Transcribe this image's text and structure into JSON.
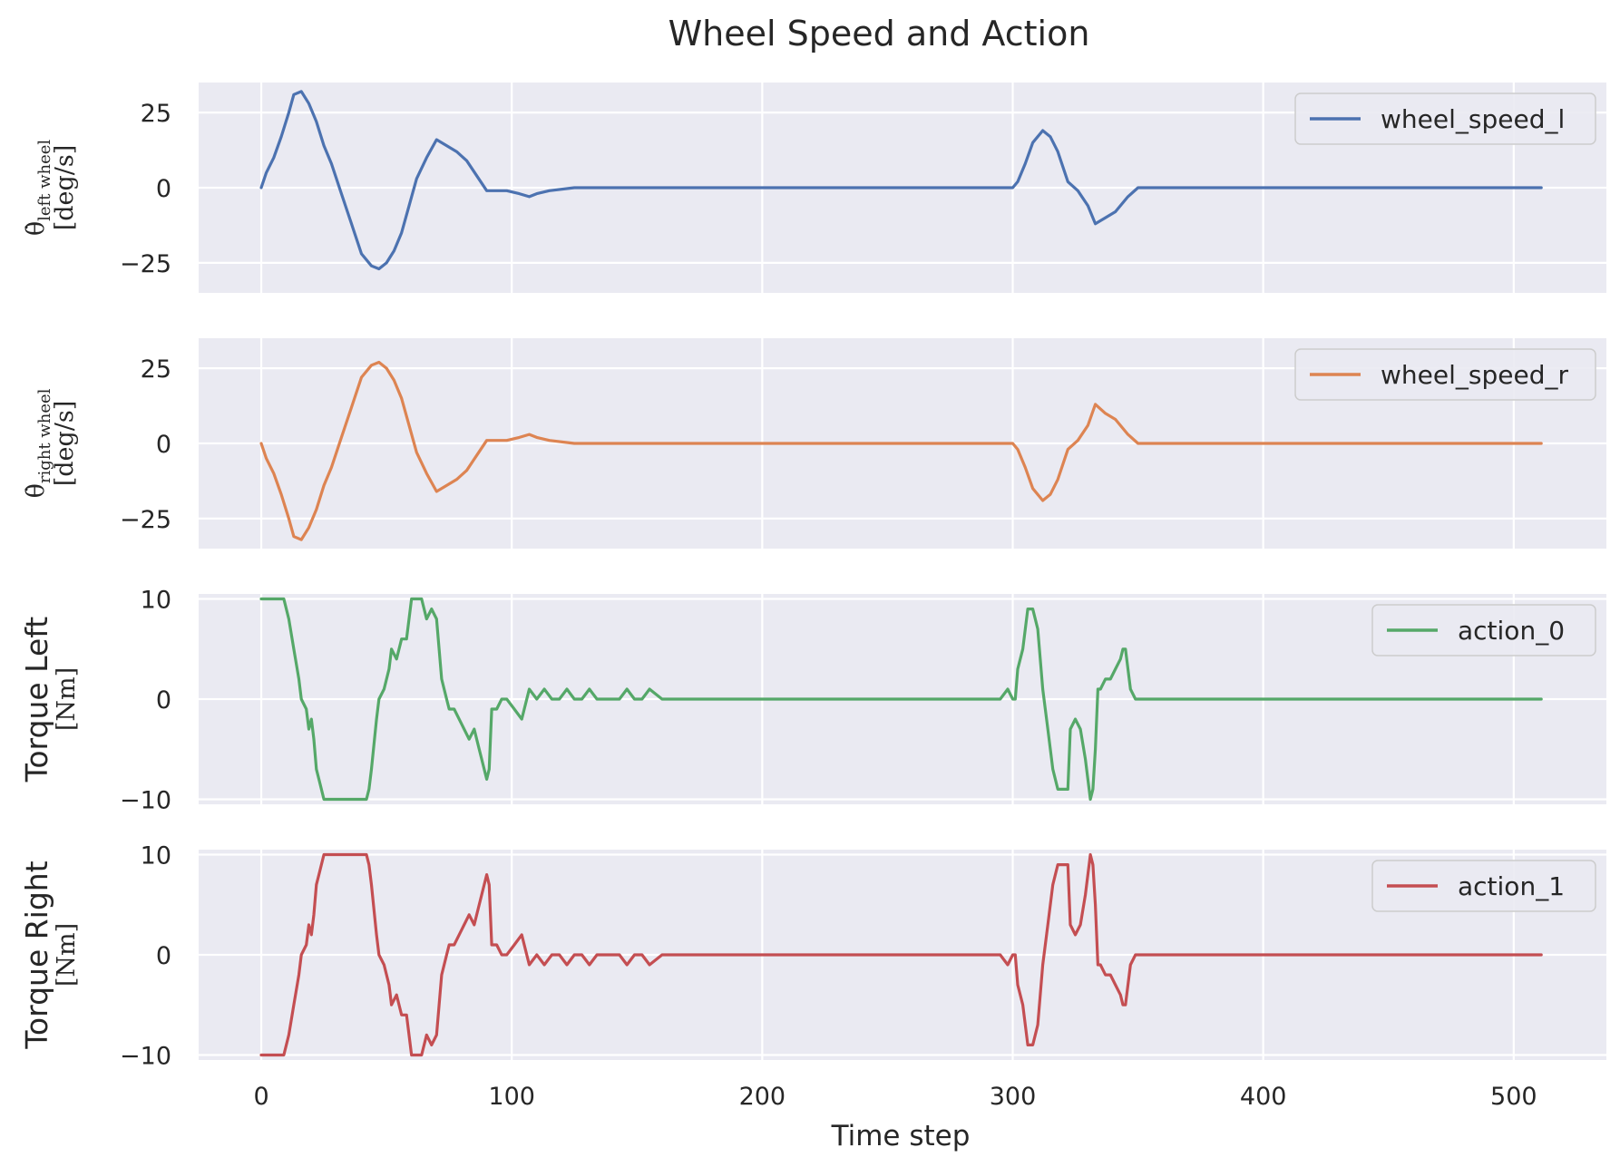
{
  "chart_data": {
    "type": "line",
    "title": "Wheel Speed and Action",
    "xlabel": "Time step",
    "xlim": [
      -25,
      537
    ],
    "xticks": [
      0,
      100,
      200,
      300,
      400,
      500
    ],
    "grid": true,
    "panels": [
      {
        "ylabel_symbol": "θ̇",
        "ylabel_subscript": "left wheel",
        "ylabel_unit": "[deg/s]",
        "ylim": [
          -35,
          35
        ],
        "yticks": [
          -25,
          0,
          25
        ],
        "ytick_labels": [
          "−25",
          "0",
          "25"
        ],
        "legend_position": "upper right",
        "series": [
          {
            "name": "wheel_speed_l",
            "color": "#4c72b0",
            "x": [
              0,
              2,
              5,
              8,
              11,
              13,
              16,
              19,
              22,
              25,
              28,
              32,
              36,
              40,
              44,
              47,
              50,
              53,
              56,
              59,
              62,
              66,
              70,
              74,
              78,
              82,
              86,
              90,
              93,
              98,
              103,
              107,
              110,
              115,
              125,
              140,
              165,
              200,
              240,
              270,
              295,
              300,
              302,
              305,
              308,
              312,
              315,
              318,
              322,
              326,
              330,
              333,
              337,
              341,
              346,
              350,
              355,
              360,
              380,
              420,
              460,
              500,
              511
            ],
            "y": [
              0,
              5,
              10,
              17,
              25,
              31,
              32,
              28,
              22,
              14,
              8,
              -2,
              -12,
              -22,
              -26,
              -27,
              -25,
              -21,
              -15,
              -6,
              3,
              10,
              16,
              14,
              12,
              9,
              4,
              -1,
              -1,
              -1,
              -2,
              -3,
              -2,
              -1,
              0,
              0,
              0,
              0,
              0,
              0,
              0,
              0,
              2,
              8,
              15,
              19,
              17,
              12,
              2,
              -1,
              -6,
              -12,
              -10,
              -8,
              -3,
              0,
              0,
              0,
              0,
              0,
              0,
              0,
              0
            ]
          }
        ]
      },
      {
        "ylabel_symbol": "θ̇",
        "ylabel_subscript": "right wheel",
        "ylabel_unit": "[deg/s]",
        "ylim": [
          -35,
          35
        ],
        "yticks": [
          -25,
          0,
          25
        ],
        "ytick_labels": [
          "−25",
          "0",
          "25"
        ],
        "legend_position": "upper right",
        "series": [
          {
            "name": "wheel_speed_r",
            "color": "#dd8452",
            "x": [
              0,
              2,
              5,
              8,
              11,
              13,
              16,
              19,
              22,
              25,
              28,
              32,
              36,
              40,
              44,
              47,
              50,
              53,
              56,
              59,
              62,
              66,
              70,
              74,
              78,
              82,
              86,
              90,
              93,
              98,
              103,
              107,
              110,
              115,
              125,
              140,
              165,
              200,
              240,
              270,
              295,
              300,
              302,
              305,
              308,
              312,
              315,
              318,
              322,
              326,
              330,
              333,
              337,
              341,
              346,
              350,
              355,
              360,
              380,
              420,
              460,
              500,
              511
            ],
            "y": [
              0,
              -5,
              -10,
              -17,
              -25,
              -31,
              -32,
              -28,
              -22,
              -14,
              -8,
              2,
              12,
              22,
              26,
              27,
              25,
              21,
              15,
              6,
              -3,
              -10,
              -16,
              -14,
              -12,
              -9,
              -4,
              1,
              1,
              1,
              2,
              3,
              2,
              1,
              0,
              0,
              0,
              0,
              0,
              0,
              0,
              0,
              -2,
              -8,
              -15,
              -19,
              -17,
              -12,
              -2,
              1,
              6,
              13,
              10,
              8,
              3,
              0,
              0,
              0,
              0,
              0,
              0,
              0,
              0
            ]
          }
        ]
      },
      {
        "ylabel_main": "Torque Left",
        "ylabel_unit": "[Nm]",
        "ylim": [
          -10.5,
          10.5
        ],
        "yticks": [
          -10,
          0,
          10
        ],
        "ytick_labels": [
          "−10",
          "0",
          "10"
        ],
        "legend_position": "upper right",
        "series": [
          {
            "name": "action_0",
            "color": "#55a868",
            "x": [
              0,
              3,
              6,
              9,
              11,
              13,
              15,
              16,
              18,
              19,
              20,
              21,
              22,
              23,
              25,
              26,
              28,
              30,
              34,
              38,
              42,
              43,
              44,
              46,
              47,
              49,
              51,
              52,
              54,
              56,
              58,
              60,
              62,
              64,
              66,
              68,
              70,
              72,
              74,
              75,
              77,
              79,
              81,
              83,
              85,
              87,
              89,
              90,
              91,
              92,
              94,
              96,
              98,
              101,
              104,
              107,
              110,
              113,
              116,
              119,
              122,
              125,
              128,
              131,
              134,
              137,
              140,
              143,
              146,
              149,
              152,
              155,
              160,
              170,
              180,
              190,
              200,
              210,
              220,
              230,
              240,
              250,
              260,
              270,
              280,
              290,
              295,
              298,
              300,
              301,
              302,
              304,
              306,
              308,
              310,
              312,
              314,
              316,
              318,
              320,
              322,
              323,
              325,
              327,
              329,
              331,
              332,
              333,
              334,
              335,
              337,
              339,
              341,
              343,
              344,
              345,
              347,
              349,
              351,
              354,
              357,
              360,
              365,
              370,
              380,
              390,
              400,
              410,
              420,
              430,
              440,
              450,
              460,
              470,
              480,
              485,
              490,
              500,
              505,
              511
            ],
            "y": [
              10,
              10,
              10,
              10,
              8,
              5,
              2,
              0,
              -1,
              -3,
              -2,
              -4,
              -7,
              -8,
              -10,
              -10,
              -10,
              -10,
              -10,
              -10,
              -10,
              -9,
              -7,
              -2,
              0,
              1,
              3,
              5,
              4,
              6,
              6,
              10,
              10,
              10,
              8,
              9,
              8,
              2,
              0,
              -1,
              -1,
              -2,
              -3,
              -4,
              -3,
              -5,
              -7,
              -8,
              -7,
              -1,
              -1,
              0,
              0,
              -1,
              -2,
              1,
              0,
              1,
              0,
              0,
              1,
              0,
              0,
              1,
              0,
              0,
              0,
              0,
              1,
              0,
              0,
              1,
              0,
              0,
              0,
              0,
              0,
              0,
              0,
              0,
              0,
              0,
              0,
              0,
              0,
              0,
              0,
              1,
              0,
              0,
              3,
              5,
              9,
              9,
              7,
              1,
              -3,
              -7,
              -9,
              -9,
              -9,
              -3,
              -2,
              -3,
              -6,
              -10,
              -9,
              -5,
              1,
              1,
              2,
              2,
              3,
              4,
              5,
              5,
              1,
              0,
              0,
              0,
              0,
              0,
              0,
              0,
              0,
              0,
              0,
              0,
              0,
              0,
              0,
              0,
              0,
              0,
              0,
              0,
              0,
              0,
              0,
              0
            ]
          }
        ]
      },
      {
        "ylabel_main": "Torque Right",
        "ylabel_unit": "[Nm]",
        "ylim": [
          -10.5,
          10.5
        ],
        "yticks": [
          -10,
          0,
          10
        ],
        "ytick_labels": [
          "−10",
          "0",
          "10"
        ],
        "legend_position": "upper right",
        "series": [
          {
            "name": "action_1",
            "color": "#c44e52",
            "x": [
              0,
              3,
              6,
              9,
              11,
              13,
              15,
              16,
              18,
              19,
              20,
              21,
              22,
              23,
              25,
              26,
              28,
              30,
              34,
              38,
              42,
              43,
              44,
              46,
              47,
              49,
              51,
              52,
              54,
              56,
              58,
              60,
              62,
              64,
              66,
              68,
              70,
              72,
              74,
              75,
              77,
              79,
              81,
              83,
              85,
              87,
              89,
              90,
              91,
              92,
              94,
              96,
              98,
              101,
              104,
              107,
              110,
              113,
              116,
              119,
              122,
              125,
              128,
              131,
              134,
              137,
              140,
              143,
              146,
              149,
              152,
              155,
              160,
              170,
              180,
              190,
              200,
              210,
              220,
              230,
              240,
              250,
              260,
              270,
              280,
              290,
              295,
              298,
              300,
              301,
              302,
              304,
              306,
              308,
              310,
              312,
              314,
              316,
              318,
              320,
              322,
              323,
              325,
              327,
              329,
              331,
              332,
              333,
              334,
              335,
              337,
              339,
              341,
              343,
              344,
              345,
              347,
              349,
              351,
              354,
              357,
              360,
              365,
              370,
              380,
              390,
              400,
              410,
              420,
              430,
              440,
              450,
              460,
              470,
              480,
              485,
              490,
              500,
              505,
              511
            ],
            "y": [
              -10,
              -10,
              -10,
              -10,
              -8,
              -5,
              -2,
              0,
              1,
              3,
              2,
              4,
              7,
              8,
              10,
              10,
              10,
              10,
              10,
              10,
              10,
              9,
              7,
              2,
              0,
              -1,
              -3,
              -5,
              -4,
              -6,
              -6,
              -10,
              -10,
              -10,
              -8,
              -9,
              -8,
              -2,
              0,
              1,
              1,
              2,
              3,
              4,
              3,
              5,
              7,
              8,
              7,
              1,
              1,
              0,
              0,
              1,
              2,
              -1,
              0,
              -1,
              0,
              0,
              -1,
              0,
              0,
              -1,
              0,
              0,
              0,
              0,
              -1,
              0,
              0,
              -1,
              0,
              0,
              0,
              0,
              0,
              0,
              0,
              0,
              0,
              0,
              0,
              0,
              0,
              0,
              0,
              -1,
              0,
              0,
              -3,
              -5,
              -9,
              -9,
              -7,
              -1,
              3,
              7,
              9,
              9,
              9,
              3,
              2,
              3,
              6,
              10,
              9,
              5,
              -1,
              -1,
              -2,
              -2,
              -3,
              -4,
              -5,
              -5,
              -1,
              0,
              0,
              0,
              0,
              0,
              0,
              0,
              0,
              0,
              0,
              0,
              0,
              0,
              0,
              0,
              0,
              0,
              0,
              0,
              0,
              0,
              0,
              0
            ]
          }
        ]
      }
    ]
  }
}
